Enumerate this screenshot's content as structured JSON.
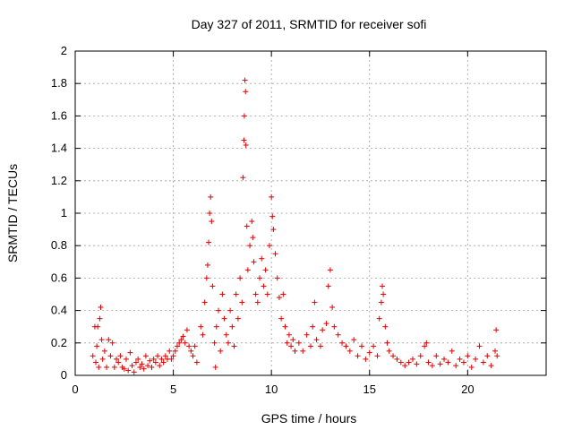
{
  "chart_data": {
    "type": "scatter",
    "title": "Day 327 of 2011, SRMTID for receiver sofi",
    "xlabel": "GPS time / hours",
    "ylabel": "SRMTID / TECUs",
    "xlim": [
      0,
      24
    ],
    "ylim": [
      0,
      2
    ],
    "xticks": [
      0,
      5,
      10,
      15,
      20
    ],
    "yticks": [
      0,
      0.2,
      0.4,
      0.6,
      0.8,
      1,
      1.2,
      1.4,
      1.6,
      1.8,
      2
    ],
    "grid": true,
    "marker": "plus",
    "series": [
      {
        "name": "SRMTID",
        "color": "#e00000",
        "points": [
          [
            0.9,
            0.12
          ],
          [
            1.0,
            0.3
          ],
          [
            1.05,
            0.08
          ],
          [
            1.1,
            0.18
          ],
          [
            1.15,
            0.3
          ],
          [
            1.2,
            0.05
          ],
          [
            1.25,
            0.35
          ],
          [
            1.3,
            0.42
          ],
          [
            1.35,
            0.22
          ],
          [
            1.4,
            0.1
          ],
          [
            1.5,
            0.15
          ],
          [
            1.6,
            0.05
          ],
          [
            1.7,
            0.22
          ],
          [
            1.8,
            0.12
          ],
          [
            1.9,
            0.2
          ],
          [
            2.0,
            0.05
          ],
          [
            2.1,
            0.1
          ],
          [
            2.2,
            0.08
          ],
          [
            2.3,
            0.12
          ],
          [
            2.4,
            0.05
          ],
          [
            2.5,
            0.04
          ],
          [
            2.6,
            0.1
          ],
          [
            2.7,
            0.03
          ],
          [
            2.8,
            0.14
          ],
          [
            2.9,
            0.06
          ],
          [
            3.0,
            0.02
          ],
          [
            3.1,
            0.08
          ],
          [
            3.2,
            0.1
          ],
          [
            3.3,
            0.05
          ],
          [
            3.4,
            0.07
          ],
          [
            3.5,
            0.04
          ],
          [
            3.6,
            0.12
          ],
          [
            3.7,
            0.06
          ],
          [
            3.8,
            0.09
          ],
          [
            3.9,
            0.05
          ],
          [
            4.0,
            0.1
          ],
          [
            4.1,
            0.08
          ],
          [
            4.2,
            0.12
          ],
          [
            4.3,
            0.06
          ],
          [
            4.4,
            0.1
          ],
          [
            4.5,
            0.08
          ],
          [
            4.6,
            0.12
          ],
          [
            4.7,
            0.1
          ],
          [
            4.8,
            0.15
          ],
          [
            4.9,
            0.1
          ],
          [
            5.0,
            0.12
          ],
          [
            5.1,
            0.15
          ],
          [
            5.2,
            0.18
          ],
          [
            5.3,
            0.2
          ],
          [
            5.4,
            0.22
          ],
          [
            5.5,
            0.24
          ],
          [
            5.6,
            0.2
          ],
          [
            5.7,
            0.28
          ],
          [
            5.8,
            0.18
          ],
          [
            5.9,
            0.15
          ],
          [
            6.0,
            0.12
          ],
          [
            6.1,
            0.18
          ],
          [
            6.2,
            0.08
          ],
          [
            6.4,
            0.3
          ],
          [
            6.5,
            0.25
          ],
          [
            6.6,
            0.45
          ],
          [
            6.7,
            0.6
          ],
          [
            6.75,
            0.68
          ],
          [
            6.8,
            0.82
          ],
          [
            6.85,
            1.0
          ],
          [
            6.9,
            1.1
          ],
          [
            6.95,
            0.95
          ],
          [
            7.0,
            0.55
          ],
          [
            7.1,
            0.2
          ],
          [
            7.15,
            0.05
          ],
          [
            7.2,
            0.3
          ],
          [
            7.3,
            0.4
          ],
          [
            7.4,
            0.15
          ],
          [
            7.5,
            0.5
          ],
          [
            7.6,
            0.35
          ],
          [
            7.7,
            0.25
          ],
          [
            7.8,
            0.2
          ],
          [
            7.9,
            0.4
          ],
          [
            8.0,
            0.3
          ],
          [
            8.1,
            0.18
          ],
          [
            8.2,
            0.5
          ],
          [
            8.3,
            0.35
          ],
          [
            8.4,
            0.6
          ],
          [
            8.5,
            0.45
          ],
          [
            8.55,
            1.22
          ],
          [
            8.6,
            1.45
          ],
          [
            8.62,
            1.6
          ],
          [
            8.65,
            1.82
          ],
          [
            8.68,
            1.75
          ],
          [
            8.7,
            1.42
          ],
          [
            8.75,
            0.92
          ],
          [
            8.8,
            0.65
          ],
          [
            8.9,
            0.8
          ],
          [
            9.0,
            0.95
          ],
          [
            9.05,
            0.85
          ],
          [
            9.1,
            0.7
          ],
          [
            9.2,
            0.5
          ],
          [
            9.3,
            0.45
          ],
          [
            9.4,
            0.6
          ],
          [
            9.5,
            0.72
          ],
          [
            9.6,
            0.55
          ],
          [
            9.7,
            0.65
          ],
          [
            9.8,
            0.5
          ],
          [
            9.9,
            0.8
          ],
          [
            10.0,
            1.1
          ],
          [
            10.05,
            0.98
          ],
          [
            10.1,
            0.9
          ],
          [
            10.2,
            0.75
          ],
          [
            10.3,
            0.6
          ],
          [
            10.4,
            0.48
          ],
          [
            10.5,
            0.35
          ],
          [
            10.6,
            0.5
          ],
          [
            10.7,
            0.3
          ],
          [
            10.8,
            0.2
          ],
          [
            10.9,
            0.25
          ],
          [
            11.0,
            0.18
          ],
          [
            11.1,
            0.22
          ],
          [
            11.2,
            0.15
          ],
          [
            11.4,
            0.2
          ],
          [
            11.6,
            0.15
          ],
          [
            11.8,
            0.25
          ],
          [
            12.0,
            0.18
          ],
          [
            12.1,
            0.3
          ],
          [
            12.2,
            0.45
          ],
          [
            12.3,
            0.22
          ],
          [
            12.5,
            0.18
          ],
          [
            12.6,
            0.28
          ],
          [
            12.8,
            0.32
          ],
          [
            12.9,
            0.55
          ],
          [
            13.0,
            0.65
          ],
          [
            13.1,
            0.42
          ],
          [
            13.2,
            0.3
          ],
          [
            13.4,
            0.25
          ],
          [
            13.6,
            0.2
          ],
          [
            13.8,
            0.18
          ],
          [
            14.0,
            0.15
          ],
          [
            14.2,
            0.22
          ],
          [
            14.4,
            0.12
          ],
          [
            14.6,
            0.18
          ],
          [
            14.8,
            0.1
          ],
          [
            15.0,
            0.14
          ],
          [
            15.2,
            0.18
          ],
          [
            15.4,
            0.12
          ],
          [
            15.5,
            0.35
          ],
          [
            15.6,
            0.45
          ],
          [
            15.65,
            0.55
          ],
          [
            15.7,
            0.5
          ],
          [
            15.8,
            0.3
          ],
          [
            15.9,
            0.2
          ],
          [
            16.0,
            0.15
          ],
          [
            16.2,
            0.12
          ],
          [
            16.4,
            0.1
          ],
          [
            16.6,
            0.08
          ],
          [
            16.8,
            0.06
          ],
          [
            17.0,
            0.08
          ],
          [
            17.2,
            0.1
          ],
          [
            17.4,
            0.07
          ],
          [
            17.6,
            0.12
          ],
          [
            17.8,
            0.18
          ],
          [
            17.9,
            0.2
          ],
          [
            18.0,
            0.08
          ],
          [
            18.2,
            0.06
          ],
          [
            18.4,
            0.12
          ],
          [
            18.6,
            0.07
          ],
          [
            18.8,
            0.1
          ],
          [
            19.0,
            0.08
          ],
          [
            19.2,
            0.15
          ],
          [
            19.4,
            0.06
          ],
          [
            19.6,
            0.1
          ],
          [
            19.8,
            0.08
          ],
          [
            20.0,
            0.12
          ],
          [
            20.2,
            0.05
          ],
          [
            20.4,
            0.1
          ],
          [
            20.6,
            0.18
          ],
          [
            20.8,
            0.08
          ],
          [
            21.0,
            0.12
          ],
          [
            21.2,
            0.06
          ],
          [
            21.4,
            0.15
          ],
          [
            21.45,
            0.28
          ],
          [
            21.5,
            0.12
          ]
        ]
      }
    ]
  }
}
